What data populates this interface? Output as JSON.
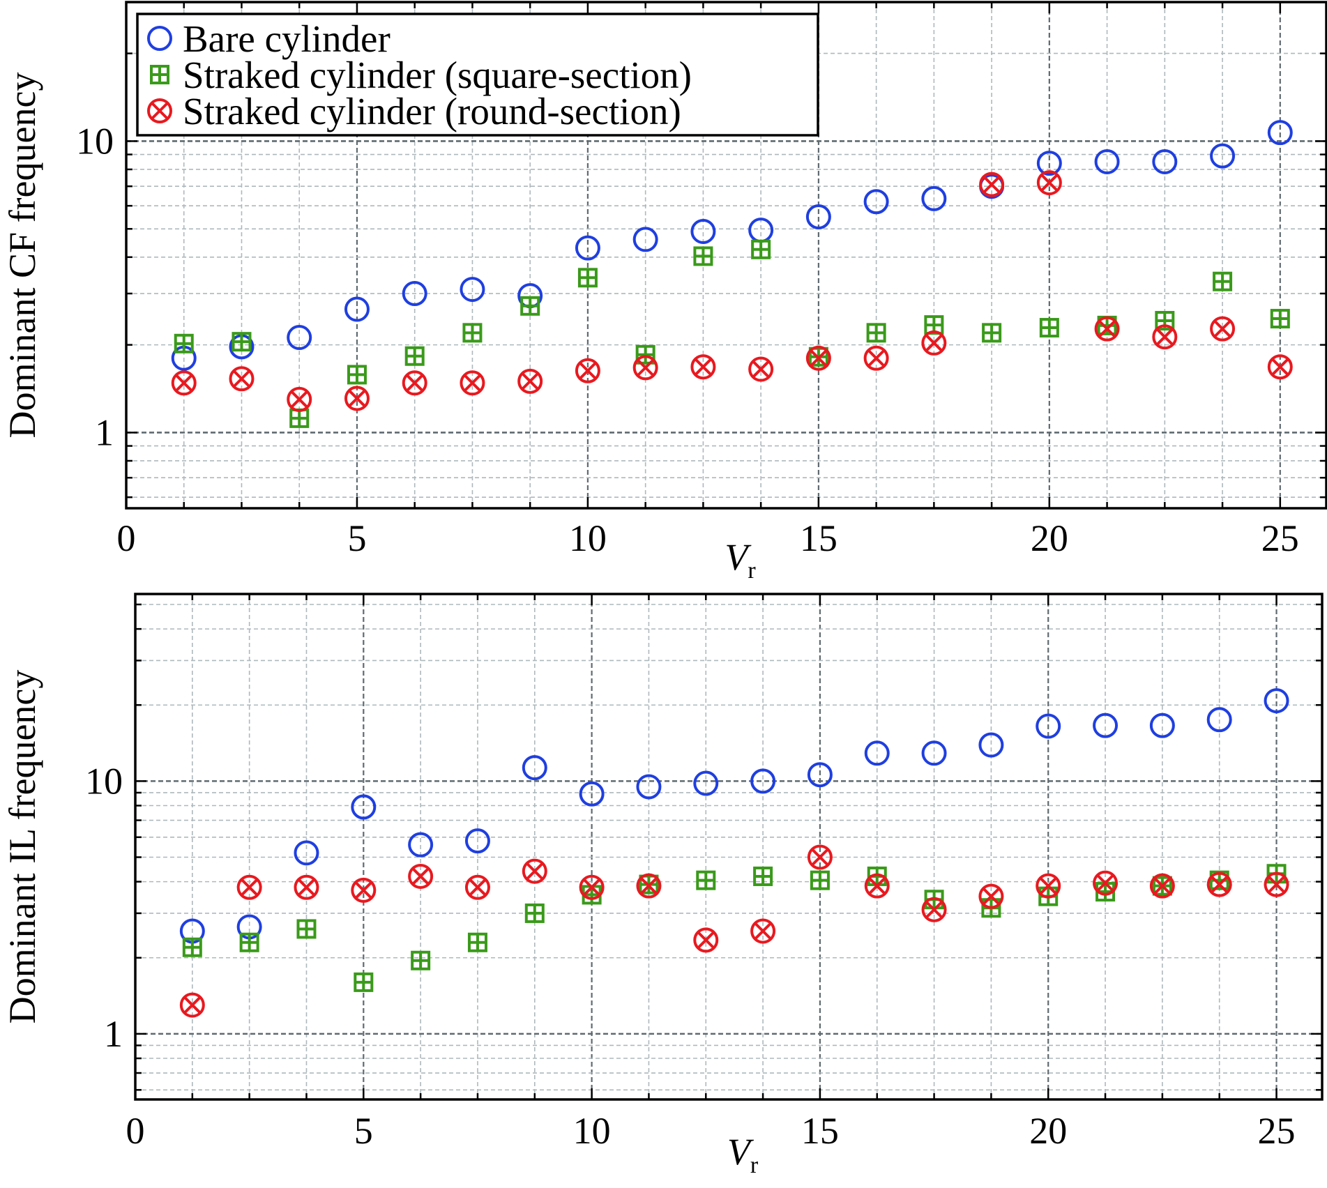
{
  "figure": {
    "background": "#ffffff",
    "series_styles": [
      {
        "name": "Bare cylinder",
        "marker": "open-circle",
        "color": "#1f3fe0"
      },
      {
        "name": "Straked cylinder (square-section)",
        "marker": "boxed-plus",
        "color": "#3a9a1a"
      },
      {
        "name": "Straked cylinder (round-section)",
        "marker": "circled-x",
        "color": "#e8191f"
      }
    ]
  },
  "chart_data": [
    {
      "type": "scatter",
      "title": "",
      "xlabel": "V",
      "xlabel_sub": "r",
      "ylabel": "Dominant CF frequency",
      "xlim": [
        0,
        26
      ],
      "ylim": [
        0.55,
        30
      ],
      "yscale": "log",
      "xticks": [
        "0",
        "5",
        "10",
        "15",
        "20",
        "25"
      ],
      "yticks": [
        "1",
        "10"
      ],
      "grid": true,
      "legend": {
        "placement": "top-left",
        "entries": [
          "Bare cylinder",
          "Straked cylinder (square-section)",
          "Straked cylinder (round-section)"
        ]
      },
      "series": [
        {
          "name": "Bare cylinder",
          "marker": "open-circle",
          "x": [
            1.25,
            2.5,
            3.75,
            5,
            6.25,
            7.5,
            8.75,
            10,
            11.25,
            12.5,
            13.75,
            15,
            16.25,
            17.5,
            18.75,
            20,
            21.25,
            22.5,
            23.75,
            25
          ],
          "y": [
            1.8,
            1.97,
            2.12,
            2.65,
            3.0,
            3.1,
            2.95,
            4.3,
            4.6,
            4.9,
            4.95,
            5.5,
            6.2,
            6.35,
            7.0,
            8.4,
            8.5,
            8.5,
            8.9,
            10.7
          ]
        },
        {
          "name": "Straked cylinder (square-section)",
          "marker": "boxed-plus",
          "x": [
            1.25,
            2.5,
            3.75,
            5,
            6.25,
            7.5,
            8.75,
            10,
            11.25,
            12.5,
            13.75,
            15,
            16.25,
            17.5,
            18.75,
            20,
            21.25,
            22.5,
            23.75,
            25
          ],
          "y": [
            2.02,
            2.05,
            1.12,
            1.58,
            1.83,
            2.2,
            2.72,
            3.4,
            1.85,
            4.03,
            4.25,
            1.82,
            2.2,
            2.34,
            2.2,
            2.29,
            2.33,
            2.42,
            3.3,
            2.46
          ]
        },
        {
          "name": "Straked cylinder (round-section)",
          "marker": "circled-x",
          "x": [
            1.25,
            2.5,
            3.75,
            5,
            6.25,
            7.5,
            8.75,
            10,
            11.25,
            12.5,
            13.75,
            15,
            16.25,
            17.5,
            18.75,
            20,
            21.25,
            22.5,
            23.75,
            25
          ],
          "y": [
            1.48,
            1.53,
            1.3,
            1.31,
            1.48,
            1.48,
            1.5,
            1.63,
            1.67,
            1.68,
            1.65,
            1.8,
            1.8,
            2.03,
            7.1,
            7.2,
            2.27,
            2.13,
            2.27,
            1.68
          ]
        }
      ]
    },
    {
      "type": "scatter",
      "title": "",
      "xlabel": "V",
      "xlabel_sub": "r",
      "ylabel": "Dominant IL frequency",
      "xlim": [
        0,
        26
      ],
      "ylim": [
        0.55,
        55
      ],
      "yscale": "log",
      "xticks": [
        "0",
        "5",
        "10",
        "15",
        "20",
        "25"
      ],
      "yticks": [
        "1",
        "10"
      ],
      "grid": true,
      "series": [
        {
          "name": "Bare cylinder",
          "marker": "open-circle",
          "x": [
            1.25,
            2.5,
            3.75,
            5,
            6.25,
            7.5,
            8.75,
            10,
            11.25,
            12.5,
            13.75,
            15,
            16.25,
            17.5,
            18.75,
            20,
            21.25,
            22.5,
            23.75,
            25
          ],
          "y": [
            2.55,
            2.65,
            5.2,
            7.9,
            5.6,
            5.8,
            11.3,
            8.9,
            9.5,
            9.8,
            10.0,
            10.6,
            12.9,
            12.9,
            13.9,
            16.5,
            16.6,
            16.6,
            17.5,
            20.8
          ]
        },
        {
          "name": "Straked cylinder (square-section)",
          "marker": "boxed-plus",
          "x": [
            1.25,
            2.5,
            3.75,
            5,
            6.25,
            7.5,
            8.75,
            10,
            11.25,
            12.5,
            13.75,
            15,
            16.25,
            17.5,
            18.75,
            20,
            21.25,
            22.5,
            23.75,
            25
          ],
          "y": [
            2.2,
            2.3,
            2.6,
            1.6,
            1.95,
            2.3,
            3.0,
            3.55,
            3.9,
            4.05,
            4.2,
            4.05,
            4.2,
            3.4,
            3.15,
            3.5,
            3.65,
            3.85,
            4.05,
            4.3
          ]
        },
        {
          "name": "Straked cylinder (round-section)",
          "marker": "circled-x",
          "x": [
            1.25,
            2.5,
            3.75,
            5,
            6.25,
            7.5,
            8.75,
            10,
            11.25,
            12.5,
            13.75,
            15,
            16.25,
            17.5,
            18.75,
            20,
            21.25,
            22.5,
            23.75,
            25
          ],
          "y": [
            1.3,
            3.8,
            3.8,
            3.7,
            4.2,
            3.8,
            4.4,
            3.8,
            3.85,
            2.35,
            2.55,
            5.0,
            3.85,
            3.1,
            3.5,
            3.85,
            3.95,
            3.85,
            3.9,
            3.9
          ]
        }
      ]
    }
  ]
}
